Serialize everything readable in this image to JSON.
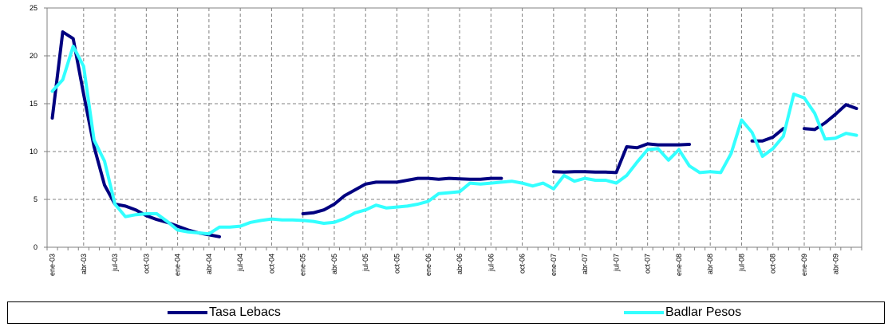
{
  "chart_data": {
    "type": "line",
    "title": "",
    "xlabel": "",
    "ylabel": "",
    "ylim": [
      0,
      25
    ],
    "yticks": [
      0,
      5,
      10,
      15,
      20,
      25
    ],
    "x_start": "ene-03",
    "num_points": 78,
    "tick_labels": [
      "ene-03",
      "abr-03",
      "jul-03",
      "oct-03",
      "ene-04",
      "abr-04",
      "jul-04",
      "oct-04",
      "ene-05",
      "abr-05",
      "jul-05",
      "oct-05",
      "ene-06",
      "abr-06",
      "jul-06",
      "oct-06",
      "ene-07",
      "abr-07",
      "jul-07",
      "oct-07",
      "ene-08",
      "abr-08",
      "jul-08",
      "oct-08",
      "ene-09",
      "abr-09"
    ],
    "grid": true,
    "legend_position": "bottom",
    "series": [
      {
        "name": "Tasa Lebacs",
        "color": "#000080",
        "values": [
          13.5,
          22.5,
          21.8,
          16.0,
          10.5,
          6.5,
          4.5,
          4.3,
          3.9,
          3.3,
          2.9,
          2.6,
          2.2,
          1.8,
          1.5,
          1.3,
          1.1,
          null,
          null,
          null,
          null,
          null,
          null,
          null,
          3.5,
          3.6,
          3.9,
          4.5,
          5.4,
          6.0,
          6.6,
          6.8,
          6.8,
          6.8,
          7.0,
          7.2,
          7.2,
          7.1,
          7.2,
          7.15,
          7.1,
          7.1,
          7.2,
          7.2,
          null,
          null,
          null,
          null,
          7.9,
          7.85,
          7.9,
          7.9,
          7.85,
          7.85,
          7.8,
          10.5,
          10.4,
          10.8,
          10.7,
          10.7,
          10.7,
          10.75,
          null,
          null,
          null,
          null,
          null,
          11.1,
          11.1,
          11.5,
          12.4,
          null,
          12.4,
          12.3,
          13.0,
          13.9,
          14.9,
          14.5
        ]
      },
      {
        "name": "Badlar Pesos",
        "color": "#33FFFF",
        "values": [
          16.3,
          17.5,
          21.0,
          18.9,
          11.2,
          9.0,
          4.5,
          3.2,
          3.4,
          3.5,
          3.5,
          2.7,
          1.8,
          1.6,
          1.5,
          1.4,
          2.1,
          2.1,
          2.2,
          2.6,
          2.8,
          2.95,
          2.85,
          2.85,
          2.8,
          2.7,
          2.5,
          2.6,
          3.0,
          3.6,
          3.9,
          4.4,
          4.1,
          4.2,
          4.3,
          4.5,
          4.8,
          5.6,
          5.7,
          5.8,
          6.7,
          6.6,
          6.7,
          6.8,
          6.9,
          6.7,
          6.4,
          6.7,
          6.1,
          7.5,
          6.9,
          7.2,
          7.0,
          7.0,
          6.7,
          7.5,
          8.9,
          10.2,
          10.3,
          9.1,
          10.2,
          8.5,
          7.8,
          7.9,
          7.8,
          9.8,
          13.3,
          12.0,
          9.5,
          10.3,
          11.6,
          16.0,
          15.6,
          14.0,
          11.3,
          11.4,
          11.9,
          11.7
        ]
      }
    ]
  }
}
